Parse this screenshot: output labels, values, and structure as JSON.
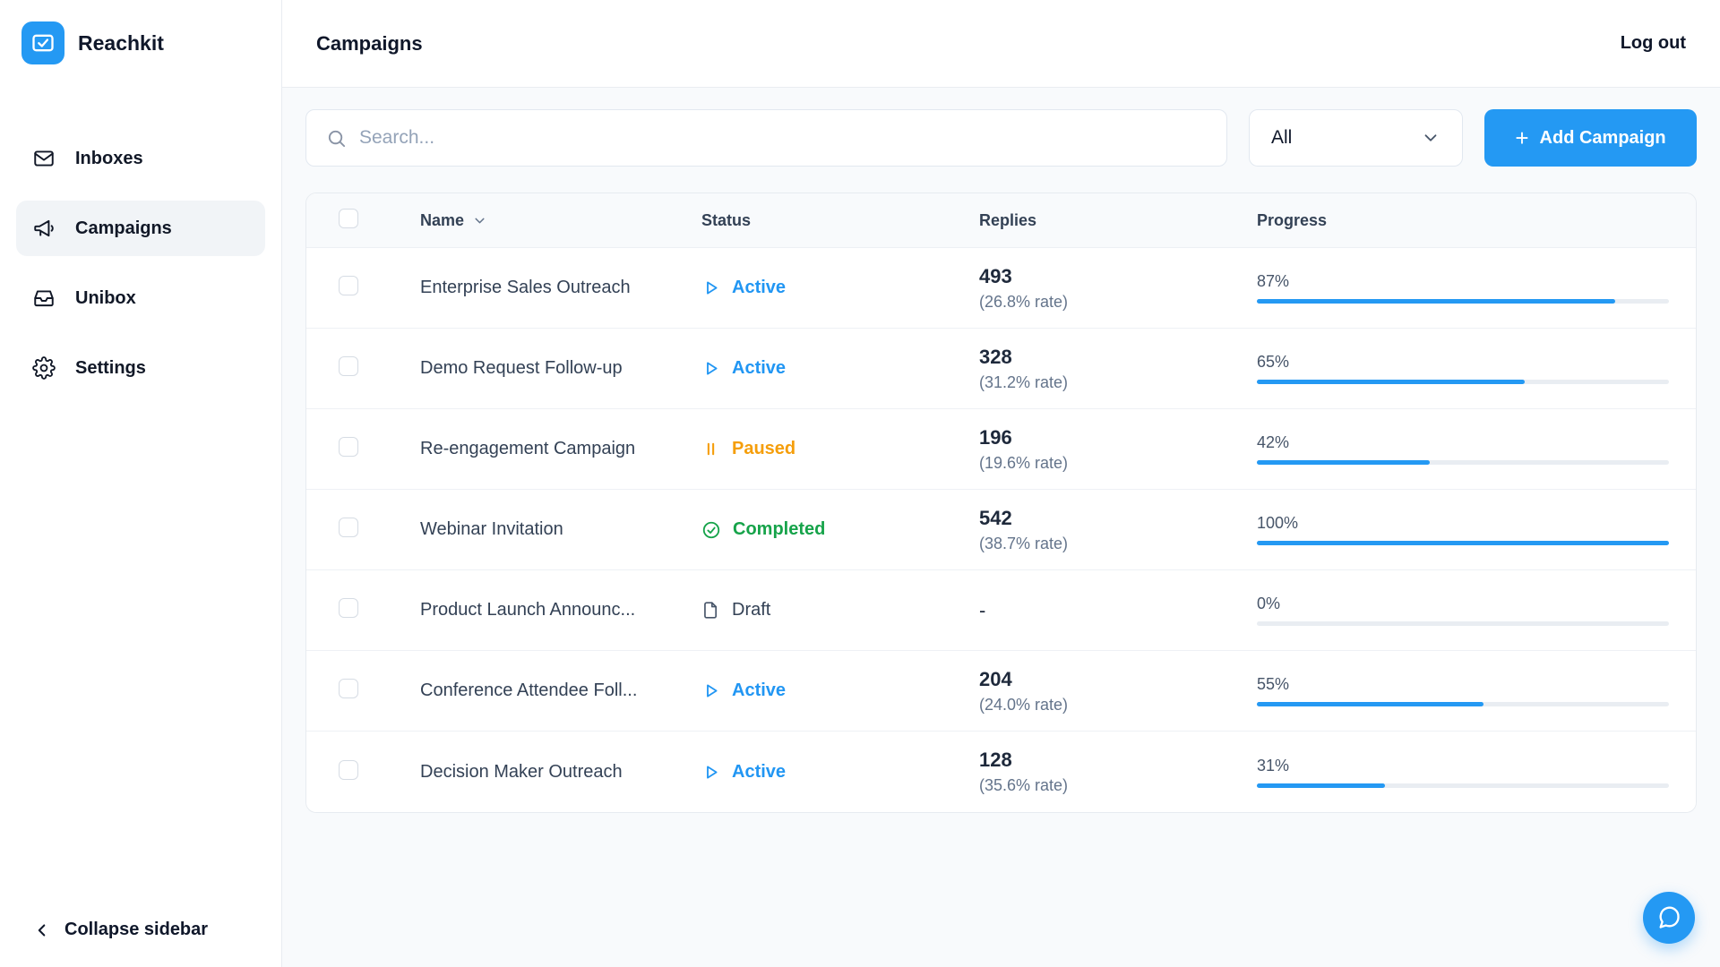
{
  "app": {
    "name": "Reachkit"
  },
  "sidebar": {
    "items": [
      {
        "label": "Inboxes"
      },
      {
        "label": "Campaigns"
      },
      {
        "label": "Unibox"
      },
      {
        "label": "Settings"
      }
    ],
    "collapse_label": "Collapse sidebar"
  },
  "header": {
    "title": "Campaigns",
    "logout_label": "Log out"
  },
  "toolbar": {
    "search_placeholder": "Search...",
    "filter_value": "All",
    "add_button_label": "Add Campaign",
    "add_button_plus": "+"
  },
  "table": {
    "columns": [
      "Name",
      "Status",
      "Replies",
      "Progress"
    ],
    "rows": [
      {
        "name": "Enterprise Sales Outreach",
        "status": "Active",
        "status_type": "active",
        "replies": "493",
        "rate": "(26.8% rate)",
        "progress": 87,
        "progress_label": "87%"
      },
      {
        "name": "Demo Request Follow-up",
        "status": "Active",
        "status_type": "active",
        "replies": "328",
        "rate": "(31.2% rate)",
        "progress": 65,
        "progress_label": "65%"
      },
      {
        "name": "Re-engagement Campaign",
        "status": "Paused",
        "status_type": "paused",
        "replies": "196",
        "rate": "(19.6% rate)",
        "progress": 42,
        "progress_label": "42%"
      },
      {
        "name": "Webinar Invitation",
        "status": "Completed",
        "status_type": "completed",
        "replies": "542",
        "rate": "(38.7% rate)",
        "progress": 100,
        "progress_label": "100%"
      },
      {
        "name": "Product Launch Announc...",
        "status": "Draft",
        "status_type": "draft",
        "replies": "-",
        "rate": "",
        "progress": 0,
        "progress_label": "0%"
      },
      {
        "name": "Conference Attendee Foll...",
        "status": "Active",
        "status_type": "active",
        "replies": "204",
        "rate": "(24.0% rate)",
        "progress": 55,
        "progress_label": "55%"
      },
      {
        "name": "Decision Maker Outreach",
        "status": "Active",
        "status_type": "active",
        "replies": "128",
        "rate": "(35.6% rate)",
        "progress": 31,
        "progress_label": "31%"
      }
    ]
  },
  "colors": {
    "accent_blue": "#2499f3",
    "status_active": "#2196f3",
    "status_paused": "#f59e0b",
    "status_completed": "#16a34a",
    "status_draft": "#334155"
  }
}
